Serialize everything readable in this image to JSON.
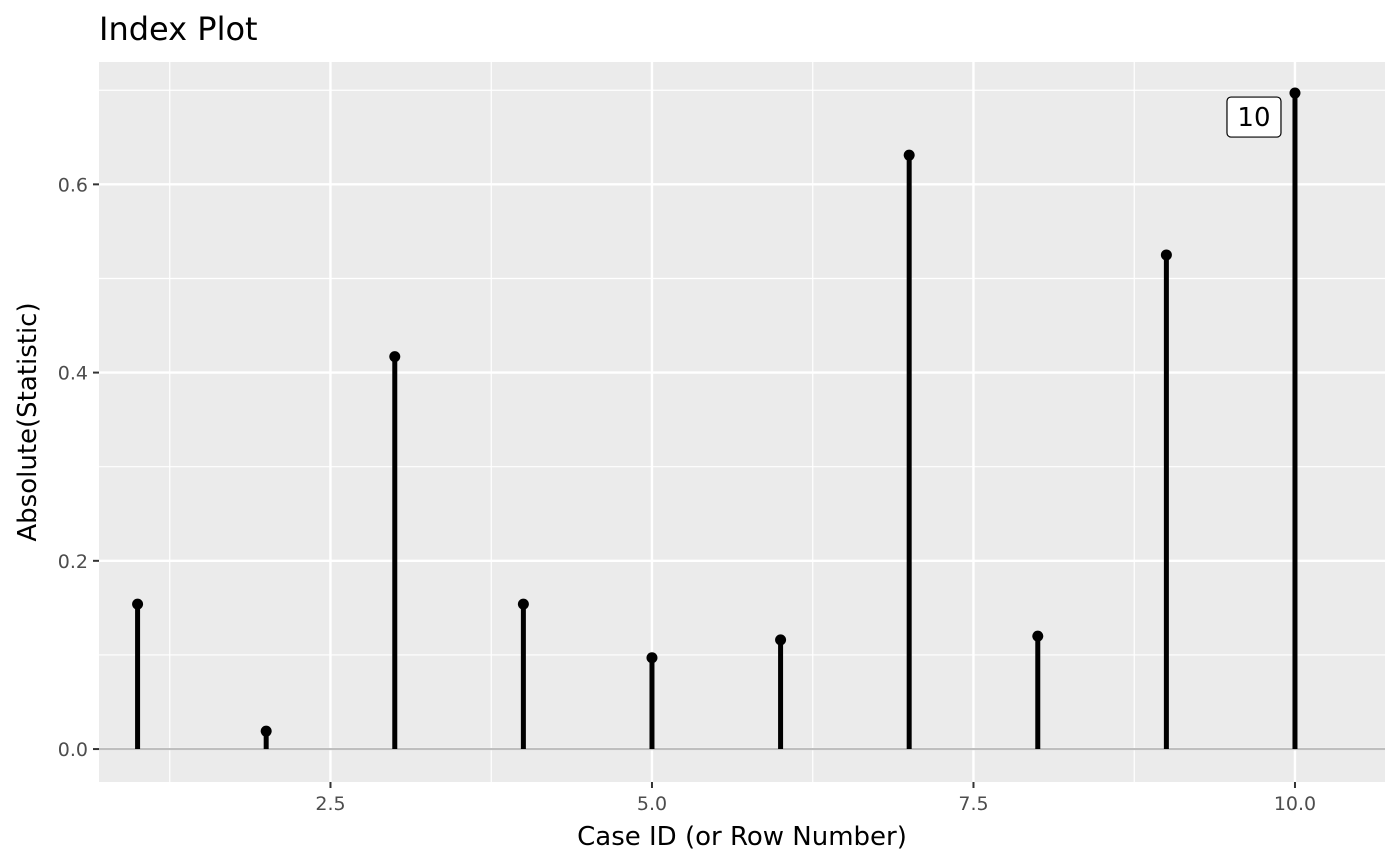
{
  "chart_data": {
    "type": "scatter",
    "title": "Index Plot",
    "xlabel": "Case ID (or Row Number)",
    "ylabel": "Absolute(Statistic)",
    "xlim": [
      0.7,
      10.7
    ],
    "ylim": [
      -0.035,
      0.73
    ],
    "x_ticks": [
      2.5,
      5.0,
      7.5,
      10.0
    ],
    "x_tick_labels": [
      "2.5",
      "5.0",
      "7.5",
      "10.0"
    ],
    "x_minor_ticks": [
      1.25,
      3.75,
      6.25,
      8.75
    ],
    "y_ticks": [
      0.0,
      0.2,
      0.4,
      0.6
    ],
    "y_tick_labels": [
      "0.0",
      "0.2",
      "0.4",
      "0.6"
    ],
    "y_minor_ticks": [
      0.1,
      0.3,
      0.5,
      0.7
    ],
    "reference_line": 0.0,
    "grid": true,
    "x": [
      1,
      2,
      3,
      4,
      5,
      6,
      7,
      8,
      9,
      10
    ],
    "values": [
      0.154,
      0.019,
      0.417,
      0.154,
      0.097,
      0.116,
      0.631,
      0.12,
      0.525,
      0.697
    ],
    "annotations": [
      {
        "x": 10,
        "y": 0.697,
        "text": "10"
      }
    ],
    "colors": {
      "panel": "#ebebeb",
      "grid": "#ffffff",
      "marks": "#000000",
      "reference_line": "#bebebe"
    }
  }
}
